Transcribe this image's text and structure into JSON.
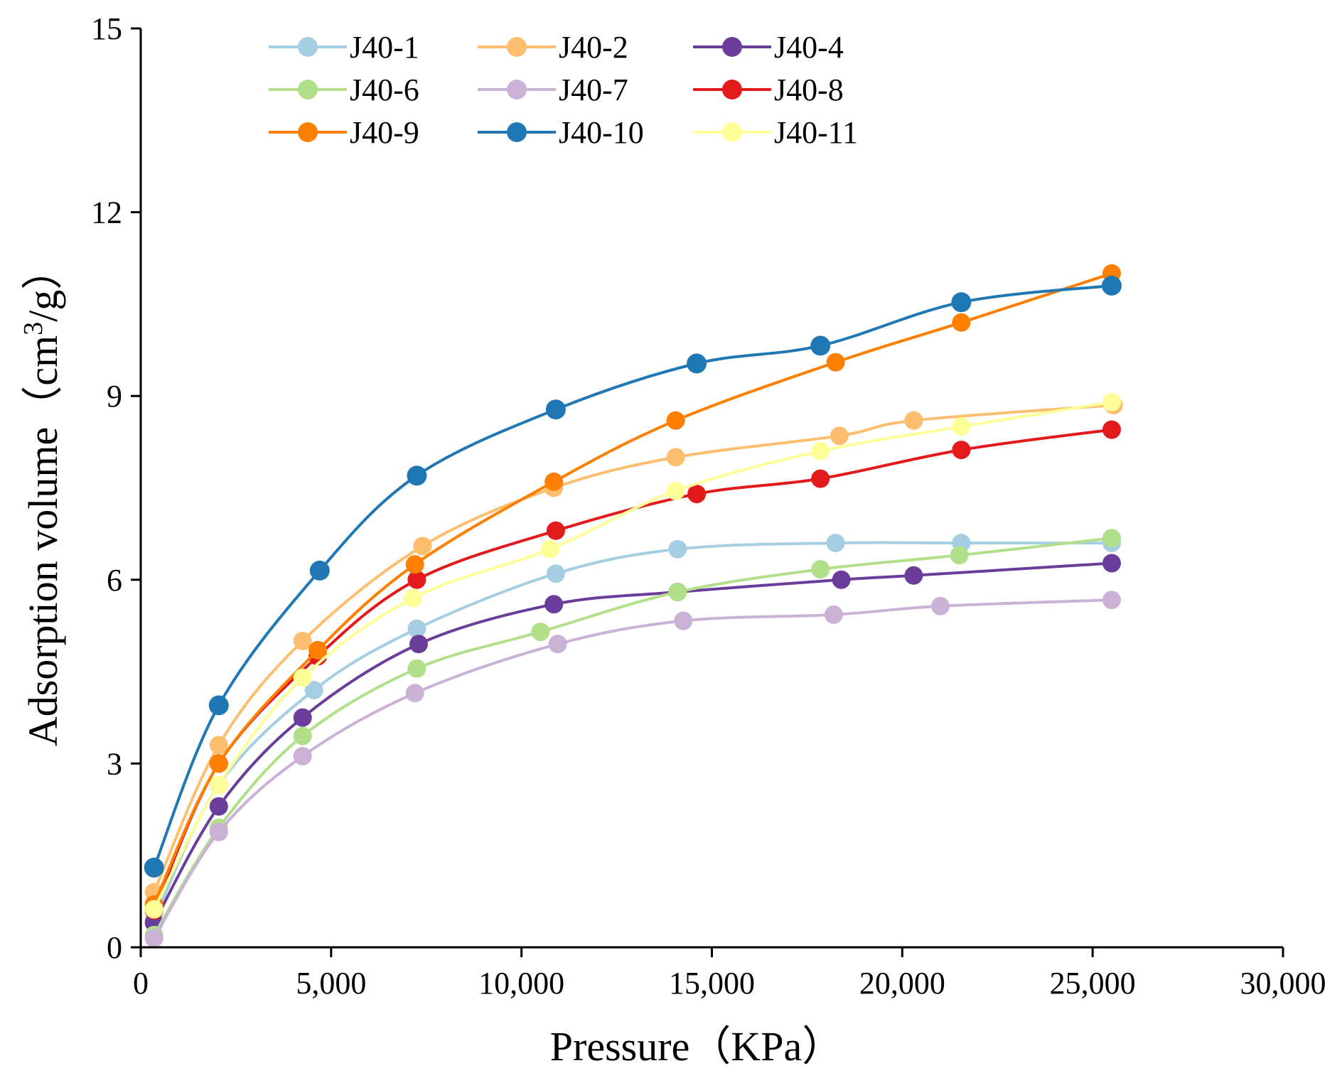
{
  "chart_data": {
    "type": "line",
    "title": "",
    "xlabel": "Pressure（KPa）",
    "ylabel_main": "Adsorption volume（cm",
    "ylabel_sup": "3",
    "ylabel_tail": "/g）",
    "xlim": [
      0,
      30000
    ],
    "ylim": [
      0,
      15
    ],
    "x_ticks": [
      0,
      5000,
      10000,
      15000,
      20000,
      25000,
      30000
    ],
    "x_tick_labels": [
      "0",
      "5,000",
      "10,000",
      "15,000",
      "20,000",
      "25,000",
      "30,000"
    ],
    "y_ticks": [
      0,
      3,
      6,
      9,
      12,
      15
    ],
    "y_tick_labels": [
      "0",
      "3",
      "6",
      "9",
      "12",
      "15"
    ],
    "grid": false,
    "legend_position": "top-left",
    "series": [
      {
        "name": "J40-1",
        "color": "#a6cee3",
        "x": [
          350,
          2050,
          4550,
          7250,
          10900,
          14100,
          18250,
          21550,
          25500
        ],
        "y": [
          0.45,
          2.65,
          4.2,
          5.2,
          6.1,
          6.5,
          6.6,
          6.6,
          6.6
        ]
      },
      {
        "name": "J40-2",
        "color": "#fdbf6f",
        "x": [
          350,
          2050,
          4250,
          7400,
          10850,
          14050,
          18350,
          20300,
          25550
        ],
        "y": [
          0.9,
          3.3,
          5.0,
          6.55,
          7.5,
          8.0,
          8.35,
          8.6,
          8.85
        ]
      },
      {
        "name": "J40-4",
        "color": "#6a3d9a",
        "x": [
          350,
          2050,
          4250,
          7300,
          10850,
          14100,
          18400,
          20300,
          25500
        ],
        "y": [
          0.4,
          2.3,
          3.75,
          4.95,
          5.6,
          5.8,
          6.0,
          6.07,
          6.27
        ]
      },
      {
        "name": "J40-6",
        "color": "#b2df8a",
        "x": [
          350,
          2050,
          4250,
          7250,
          10500,
          14100,
          17850,
          21500,
          25500
        ],
        "y": [
          0.2,
          1.95,
          3.45,
          4.55,
          5.15,
          5.8,
          6.17,
          6.4,
          6.68
        ]
      },
      {
        "name": "J40-7",
        "color": "#cab2d6",
        "x": [
          350,
          2050,
          4250,
          7200,
          10950,
          14250,
          18200,
          21000,
          25500
        ],
        "y": [
          0.15,
          1.88,
          3.12,
          4.15,
          4.95,
          5.33,
          5.43,
          5.57,
          5.67
        ]
      },
      {
        "name": "J40-8",
        "color": "#e31a1c",
        "x": [
          350,
          2050,
          4650,
          7250,
          10900,
          14600,
          17850,
          21550,
          25500
        ],
        "y": [
          0.6,
          3.0,
          4.75,
          6.0,
          6.8,
          7.4,
          7.65,
          8.12,
          8.45
        ]
      },
      {
        "name": "J40-9",
        "color": "#ff7f00",
        "x": [
          350,
          2050,
          4650,
          7200,
          10850,
          14050,
          18250,
          21550,
          25500
        ],
        "y": [
          0.7,
          3.0,
          4.85,
          6.25,
          7.6,
          8.6,
          9.55,
          10.2,
          11.0
        ]
      },
      {
        "name": "J40-10",
        "color": "#1f78b4",
        "x": [
          350,
          2050,
          4700,
          7250,
          10900,
          14600,
          17850,
          21550,
          25500
        ],
        "y": [
          1.3,
          3.95,
          6.15,
          7.7,
          8.78,
          9.53,
          9.82,
          10.53,
          10.8
        ]
      },
      {
        "name": "J40-11",
        "color": "#ffff99",
        "x": [
          350,
          2050,
          4250,
          7150,
          10750,
          14050,
          17850,
          21550,
          25500
        ],
        "y": [
          0.62,
          2.65,
          4.4,
          5.7,
          6.5,
          7.45,
          8.1,
          8.5,
          8.9
        ]
      }
    ]
  }
}
